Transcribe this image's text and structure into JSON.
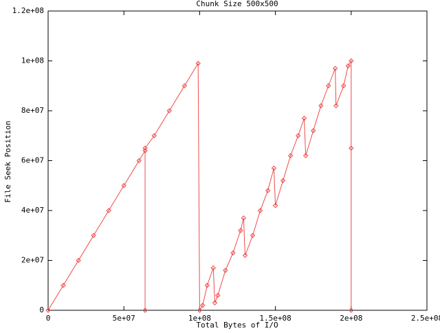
{
  "chart_data": {
    "type": "line",
    "title": "Chunk Size 500x500",
    "x_label": "Total Bytes of I/O",
    "y_label": "File Seek Position",
    "xlim": [
      0,
      250000000
    ],
    "ylim": [
      0,
      120000000
    ],
    "xticks": [
      0,
      {
        "value": 50000000,
        "label": "5e+07"
      },
      {
        "value": 100000000,
        "label": "1e+08"
      },
      {
        "value": 150000000,
        "label": "1.5e+08"
      },
      {
        "value": 200000000,
        "label": "2e+08"
      },
      {
        "value": 250000000,
        "label": "2.5e+08"
      }
    ],
    "yticks": [
      0,
      {
        "value": 20000000,
        "label": "2e+07"
      },
      {
        "value": 40000000,
        "label": "4e+07"
      },
      {
        "value": 60000000,
        "label": "6e+07"
      },
      {
        "value": 80000000,
        "label": "8e+07"
      },
      {
        "value": 100000000,
        "label": "1e+08"
      },
      {
        "value": 120000000,
        "label": "1.2e+08"
      }
    ],
    "grid": false,
    "series": [
      {
        "color": "#f04848",
        "x": [
          0,
          10000000.0,
          20000000.0,
          30000000.0,
          40000000.0,
          50000000.0,
          60000000.0,
          64000000.0,
          64000000.0,
          64000000.0,
          70000000.0,
          80000000.0,
          90000000.0,
          99000000.0,
          100000000.0,
          102000000.0,
          105000000.0,
          109000000.0,
          110000000.0,
          112000000.0,
          117000000.0,
          122000000.0,
          127000000.0,
          129000000.0,
          130000000.0,
          135000000.0,
          140000000.0,
          145000000.0,
          149000000.0,
          150000000.0,
          155000000.0,
          160000000.0,
          165000000.0,
          169000000.0,
          170000000.0,
          175000000.0,
          180000000.0,
          185000000.0,
          189500000.0,
          190000000.0,
          195000000.0,
          198000000.0,
          200000000.0,
          200000000.0,
          200000000.0
        ],
        "values": [
          0,
          10000000.0,
          20000000.0,
          30000000.0,
          40000000.0,
          50000000.0,
          60000000.0,
          64000000.0,
          0,
          65000000.0,
          70000000.0,
          80000000.0,
          90000000.0,
          99000000.0,
          0,
          2000000.0,
          10000000.0,
          17000000.0,
          3000000.0,
          6000000.0,
          16000000.0,
          23000000.0,
          32000000.0,
          37000000.0,
          22000000.0,
          30000000.0,
          40000000.0,
          48000000.0,
          57000000.0,
          42000000.0,
          52000000.0,
          62000000.0,
          70000000.0,
          77000000.0,
          62000000.0,
          72000000.0,
          82000000.0,
          90000000.0,
          97000000.0,
          82000000.0,
          90000000.0,
          98000000.0,
          100000000.0,
          0,
          65000000.0
        ]
      }
    ]
  }
}
